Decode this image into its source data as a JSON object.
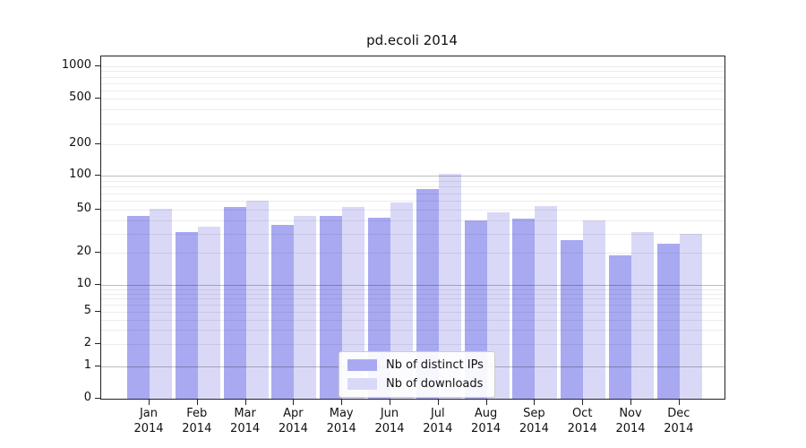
{
  "chart_data": {
    "type": "bar",
    "title": "pd.ecoli 2014",
    "y_scale": "log-like",
    "ylim": [
      0,
      1000
    ],
    "months": [
      {
        "label": "Jan",
        "year": "2014"
      },
      {
        "label": "Feb",
        "year": "2014"
      },
      {
        "label": "Mar",
        "year": "2014"
      },
      {
        "label": "Apr",
        "year": "2014"
      },
      {
        "label": "May",
        "year": "2014"
      },
      {
        "label": "Jun",
        "year": "2014"
      },
      {
        "label": "Jul",
        "year": "2014"
      },
      {
        "label": "Aug",
        "year": "2014"
      },
      {
        "label": "Sep",
        "year": "2014"
      },
      {
        "label": "Oct",
        "year": "2014"
      },
      {
        "label": "Nov",
        "year": "2014"
      },
      {
        "label": "Dec",
        "year": "2014"
      }
    ],
    "series": [
      {
        "name": "Nb of distinct IPs",
        "color": "#a9a9f1",
        "values": [
          44,
          31,
          53,
          36,
          44,
          42,
          76,
          40,
          41,
          26,
          19,
          24
        ]
      },
      {
        "name": "Nb of downloads",
        "color": "#d9d9f7",
        "values": [
          51,
          35,
          60,
          44,
          53,
          58,
          104,
          47,
          54,
          40,
          31,
          30
        ]
      }
    ],
    "y_ticks": [
      {
        "value": 0,
        "label": "0"
      },
      {
        "value": 1,
        "label": "1"
      },
      {
        "value": 2,
        "label": "2"
      },
      {
        "value": 5,
        "label": "5"
      },
      {
        "value": 10,
        "label": "10"
      },
      {
        "value": 20,
        "label": "20"
      },
      {
        "value": 50,
        "label": "50"
      },
      {
        "value": 100,
        "label": "100"
      },
      {
        "value": 200,
        "label": "200"
      },
      {
        "value": 500,
        "label": "500"
      },
      {
        "value": 1000,
        "label": "1000"
      }
    ],
    "grid": {
      "minor": [
        2,
        3,
        4,
        5,
        6,
        7,
        8,
        9,
        20,
        30,
        40,
        50,
        60,
        70,
        80,
        90,
        200,
        300,
        400,
        500,
        600,
        700,
        800,
        900,
        1000
      ],
      "major": [
        1,
        10,
        100
      ]
    },
    "legend": {
      "position": "bottom-center"
    }
  }
}
